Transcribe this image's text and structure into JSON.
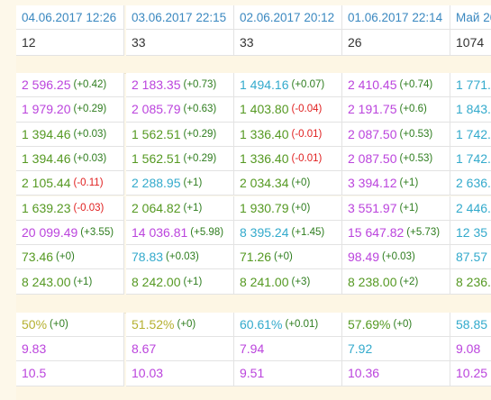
{
  "header": [
    "04.06.2017 12:26",
    "03.06.2017 22:15",
    "02.06.2017 20:12",
    "01.06.2017 22:14",
    "Май 20"
  ],
  "counts": [
    "12",
    "33",
    "33",
    "26",
    "1074"
  ],
  "sections": [
    [
      [
        {
          "value": "2 596.25",
          "delta": "(+0.42)",
          "color": "purple"
        },
        {
          "value": "2 183.35",
          "delta": "(+0.73)",
          "color": "purple"
        },
        {
          "value": "1 494.16",
          "delta": "(+0.07)",
          "color": "blue"
        },
        {
          "value": "2 410.45",
          "delta": "(+0.74)",
          "color": "purple"
        },
        {
          "value": "1 771.",
          "color": "blue"
        }
      ],
      [
        {
          "value": "1 979.20",
          "delta": "(+0.29)",
          "color": "purple"
        },
        {
          "value": "2 085.79",
          "delta": "(+0.63)",
          "color": "purple"
        },
        {
          "value": "1 403.80",
          "delta": "(-0.04)",
          "color": "green"
        },
        {
          "value": "2 191.75",
          "delta": "(+0.6)",
          "color": "purple"
        },
        {
          "value": "1 843.",
          "color": "blue"
        }
      ],
      [
        {
          "value": "1 394.46",
          "delta": "(+0.03)",
          "color": "green"
        },
        {
          "value": "1 562.51",
          "delta": "(+0.29)",
          "color": "green"
        },
        {
          "value": "1 336.40",
          "delta": "(-0.01)",
          "color": "green"
        },
        {
          "value": "2 087.50",
          "delta": "(+0.53)",
          "color": "purple"
        },
        {
          "value": "1 742.",
          "color": "blue"
        }
      ],
      [
        {
          "value": "1 394.46",
          "delta": "(+0.03)",
          "color": "green"
        },
        {
          "value": "1 562.51",
          "delta": "(+0.29)",
          "color": "green"
        },
        {
          "value": "1 336.40",
          "delta": "(-0.01)",
          "color": "green"
        },
        {
          "value": "2 087.50",
          "delta": "(+0.53)",
          "color": "purple"
        },
        {
          "value": "1 742.",
          "color": "blue"
        }
      ],
      [
        {
          "value": "2 105.44",
          "delta": "(-0.11)",
          "color": "green"
        },
        {
          "value": "2 288.95",
          "delta": "(+1)",
          "color": "blue"
        },
        {
          "value": "2 034.34",
          "delta": "(+0)",
          "color": "green"
        },
        {
          "value": "3 394.12",
          "delta": "(+1)",
          "color": "purple"
        },
        {
          "value": "2 636.",
          "color": "blue"
        }
      ],
      [
        {
          "value": "1 639.23",
          "delta": "(-0.03)",
          "color": "green"
        },
        {
          "value": "2 064.82",
          "delta": "(+1)",
          "color": "green"
        },
        {
          "value": "1 930.79",
          "delta": "(+0)",
          "color": "green"
        },
        {
          "value": "3 551.97",
          "delta": "(+1)",
          "color": "purple"
        },
        {
          "value": "2 446.",
          "color": "blue"
        }
      ],
      [
        {
          "value": "20 099.49",
          "delta": "(+3.55)",
          "color": "purple"
        },
        {
          "value": "14 036.81",
          "delta": "(+5.98)",
          "color": "purple"
        },
        {
          "value": "8 395.24",
          "delta": "(+1.45)",
          "color": "blue"
        },
        {
          "value": "15 647.82",
          "delta": "(+5.73)",
          "color": "purple"
        },
        {
          "value": "12 35",
          "color": "blue"
        }
      ],
      [
        {
          "value": "73.46",
          "delta": "(+0)",
          "color": "green"
        },
        {
          "value": "78.83",
          "delta": "(+0.03)",
          "color": "blue"
        },
        {
          "value": "71.26",
          "delta": "(+0)",
          "color": "green"
        },
        {
          "value": "98.49",
          "delta": "(+0.03)",
          "color": "purple"
        },
        {
          "value": "87.57",
          "color": "blue"
        }
      ],
      [
        {
          "value": "8 243.00",
          "delta": "(+1)",
          "color": "green"
        },
        {
          "value": "8 242.00",
          "delta": "(+1)",
          "color": "green"
        },
        {
          "value": "8 241.00",
          "delta": "(+3)",
          "color": "green"
        },
        {
          "value": "8 238.00",
          "delta": "(+2)",
          "color": "green"
        },
        {
          "value": "8 236.",
          "color": "green"
        }
      ]
    ],
    [
      [
        {
          "value": "50%",
          "delta": "(+0)",
          "color": "olive"
        },
        {
          "value": "51.52%",
          "delta": "(+0)",
          "color": "olive"
        },
        {
          "value": "60.61%",
          "delta": "(+0.01)",
          "color": "blue"
        },
        {
          "value": "57.69%",
          "delta": "(+0)",
          "color": "green"
        },
        {
          "value": "58.85",
          "color": "blue"
        }
      ],
      [
        {
          "value": "9.83",
          "color": "purple"
        },
        {
          "value": "8.67",
          "color": "purple"
        },
        {
          "value": "7.94",
          "color": "purple"
        },
        {
          "value": "7.92",
          "color": "blue"
        },
        {
          "value": "9.08",
          "color": "purple"
        }
      ],
      [
        {
          "value": "10.5",
          "color": "purple"
        },
        {
          "value": "10.03",
          "color": "purple"
        },
        {
          "value": "9.51",
          "color": "purple"
        },
        {
          "value": "10.36",
          "color": "purple"
        },
        {
          "value": "10.25",
          "color": "purple"
        }
      ]
    ]
  ]
}
